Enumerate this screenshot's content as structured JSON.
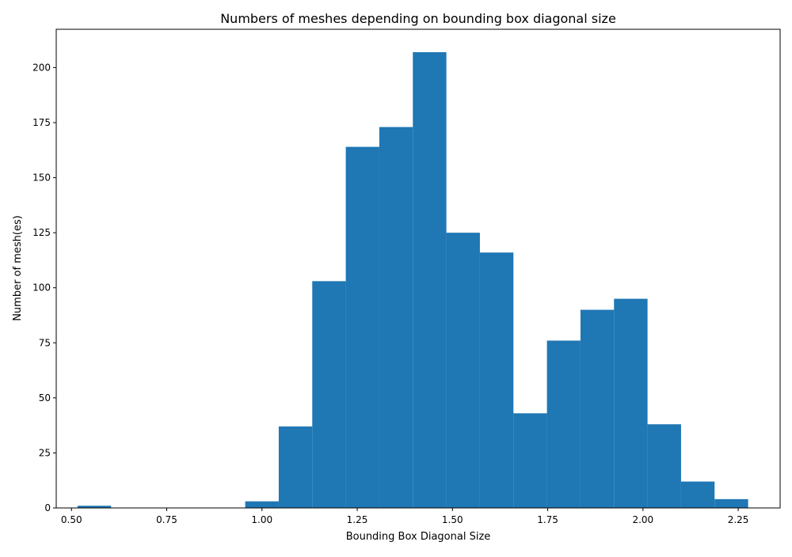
{
  "chart_data": {
    "type": "bar",
    "title": "Numbers of meshes depending on bounding box diagonal size",
    "xlabel": "Bounding Box Diagonal Size",
    "ylabel": "Number of mesh(es)",
    "xlim": [
      0.46,
      2.36
    ],
    "ylim": [
      0,
      217.4
    ],
    "xticks": [
      0.5,
      0.75,
      1.0,
      1.25,
      1.5,
      1.75,
      2.0,
      2.25
    ],
    "xtick_labels": [
      "0.50",
      "0.75",
      "1.00",
      "1.25",
      "1.50",
      "1.75",
      "2.00",
      "2.25"
    ],
    "yticks": [
      0,
      25,
      50,
      75,
      100,
      125,
      150,
      175,
      200
    ],
    "ytick_labels": [
      "0",
      "25",
      "50",
      "75",
      "100",
      "125",
      "150",
      "175",
      "200"
    ],
    "bins": [
      {
        "start": 0.516,
        "end": 0.604,
        "count": 1
      },
      {
        "start": 0.604,
        "end": 0.692,
        "count": 0
      },
      {
        "start": 0.692,
        "end": 0.78,
        "count": 0
      },
      {
        "start": 0.78,
        "end": 0.868,
        "count": 0
      },
      {
        "start": 0.868,
        "end": 0.956,
        "count": 0
      },
      {
        "start": 0.956,
        "end": 1.044,
        "count": 3
      },
      {
        "start": 1.044,
        "end": 1.132,
        "count": 37
      },
      {
        "start": 1.132,
        "end": 1.22,
        "count": 103
      },
      {
        "start": 1.22,
        "end": 1.308,
        "count": 164
      },
      {
        "start": 1.308,
        "end": 1.396,
        "count": 173
      },
      {
        "start": 1.396,
        "end": 1.484,
        "count": 207
      },
      {
        "start": 1.484,
        "end": 1.572,
        "count": 125
      },
      {
        "start": 1.572,
        "end": 1.66,
        "count": 116
      },
      {
        "start": 1.66,
        "end": 1.748,
        "count": 43
      },
      {
        "start": 1.748,
        "end": 1.836,
        "count": 76
      },
      {
        "start": 1.836,
        "end": 1.924,
        "count": 90
      },
      {
        "start": 1.924,
        "end": 2.012,
        "count": 95
      },
      {
        "start": 2.012,
        "end": 2.1,
        "count": 38
      },
      {
        "start": 2.1,
        "end": 2.188,
        "count": 12
      },
      {
        "start": 2.188,
        "end": 2.276,
        "count": 4
      }
    ],
    "bar_color": "#1f77b4",
    "grid": false,
    "legend": "none"
  }
}
